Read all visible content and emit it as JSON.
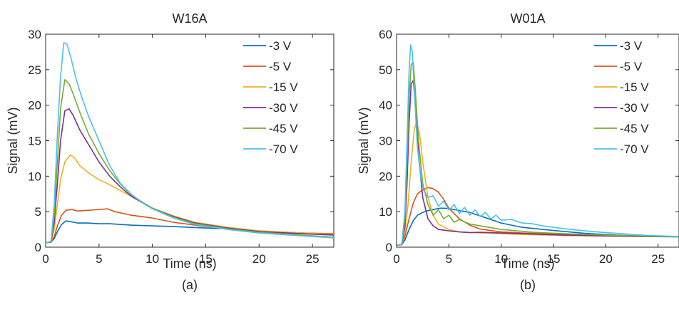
{
  "figure": {
    "caption_a": "(a)",
    "caption_b": "(b)"
  },
  "chart_data": [
    {
      "type": "line",
      "title": "W16A",
      "xlabel": "Time (ns)",
      "ylabel": "Signal (mV)",
      "xlim": [
        0,
        27
      ],
      "ylim": [
        0,
        30
      ],
      "xticks": [
        0,
        5,
        10,
        15,
        20,
        25
      ],
      "yticks": [
        0,
        5,
        10,
        15,
        20,
        25,
        30
      ],
      "legend_position": "top-right",
      "grid": false,
      "series": [
        {
          "name": "-3 V",
          "color": "#0072BD",
          "x": [
            0,
            0.5,
            0.8,
            1.1,
            1.5,
            1.9,
            2.3,
            3,
            4,
            5,
            6,
            8,
            10,
            12,
            15,
            18,
            21,
            24,
            27
          ],
          "y": [
            0.6,
            0.7,
            1.2,
            2.2,
            3.2,
            3.7,
            3.6,
            3.4,
            3.4,
            3.3,
            3.3,
            3.1,
            3.0,
            2.9,
            2.7,
            2.5,
            2.2,
            2.0,
            1.8
          ]
        },
        {
          "name": "-5 V",
          "color": "#D95319",
          "x": [
            0,
            0.5,
            0.8,
            1.1,
            1.5,
            1.9,
            2.5,
            3,
            4,
            5,
            5.8,
            6.5,
            8,
            10,
            12,
            15,
            18,
            21,
            24,
            27
          ],
          "y": [
            0.6,
            0.7,
            1.5,
            3.0,
            4.5,
            5.2,
            5.3,
            5.1,
            5.2,
            5.3,
            5.4,
            5.0,
            4.5,
            4.1,
            3.5,
            2.9,
            2.5,
            2.2,
            2.0,
            1.9
          ]
        },
        {
          "name": "-15 V",
          "color": "#EDB120",
          "x": [
            0,
            0.5,
            0.8,
            1.1,
            1.4,
            1.8,
            2.3,
            2.7,
            3.2,
            4,
            5,
            6,
            7,
            8,
            9,
            10,
            12,
            14,
            17,
            20,
            24,
            27
          ],
          "y": [
            0.6,
            0.8,
            2.5,
            6.0,
            9.5,
            12.0,
            13.0,
            12.6,
            11.5,
            10.5,
            9.5,
            8.8,
            8.0,
            7.2,
            6.3,
            5.5,
            4.4,
            3.5,
            2.8,
            2.3,
            2.0,
            1.8
          ]
        },
        {
          "name": "-30 V",
          "color": "#7E2F8E",
          "x": [
            0,
            0.5,
            0.8,
            1.1,
            1.4,
            1.8,
            2.2,
            2.6,
            3.2,
            4,
            5,
            6,
            7,
            8,
            9,
            10,
            12,
            14,
            17,
            20,
            24,
            27
          ],
          "y": [
            0.6,
            0.8,
            3.5,
            9.0,
            15.0,
            19.2,
            19.5,
            18.5,
            16.5,
            14.5,
            12.0,
            10.0,
            8.5,
            7.2,
            6.3,
            5.5,
            4.3,
            3.4,
            2.7,
            2.2,
            1.9,
            1.7
          ]
        },
        {
          "name": "-45 V",
          "color": "#77AC30",
          "x": [
            0,
            0.5,
            0.8,
            1.1,
            1.4,
            1.8,
            2.2,
            2.6,
            3.2,
            4,
            5,
            6,
            7,
            8,
            9,
            10,
            12,
            14,
            17,
            20,
            24,
            27
          ],
          "y": [
            0.6,
            0.8,
            4.5,
            12.0,
            19.5,
            23.6,
            23.0,
            21.5,
            19.0,
            16.0,
            13.2,
            10.8,
            8.9,
            7.4,
            6.4,
            5.5,
            4.2,
            3.3,
            2.6,
            2.1,
            1.7,
            1.4
          ]
        },
        {
          "name": "-70 V",
          "color": "#4DBEEE",
          "x": [
            0,
            0.5,
            0.8,
            1.1,
            1.4,
            1.7,
            2.0,
            2.4,
            2.8,
            3.3,
            4,
            5,
            6,
            7,
            8,
            9,
            10,
            12,
            14,
            17,
            20,
            24,
            27
          ],
          "y": [
            0.6,
            0.8,
            6.0,
            16.0,
            24.0,
            28.8,
            28.6,
            26.5,
            24.0,
            21.5,
            18.5,
            15.0,
            11.5,
            9.0,
            7.5,
            6.3,
            5.4,
            4.1,
            3.2,
            2.5,
            2.0,
            1.6,
            1.3
          ]
        }
      ]
    },
    {
      "type": "line",
      "title": "W01A",
      "xlabel": "Time (ns)",
      "ylabel": "Signal (mV)",
      "xlim": [
        0,
        27
      ],
      "ylim": [
        0,
        60
      ],
      "xticks": [
        0,
        5,
        10,
        15,
        20,
        25
      ],
      "yticks": [
        0,
        10,
        20,
        30,
        40,
        50,
        60
      ],
      "legend_position": "top-right",
      "grid": false,
      "series": [
        {
          "name": "-3 V",
          "color": "#0072BD",
          "x": [
            0,
            0.5,
            0.8,
            1.2,
            1.6,
            2.0,
            2.5,
            3,
            3.5,
            4.2,
            5,
            6,
            7,
            8,
            9,
            10,
            12,
            15,
            18,
            21,
            24,
            27
          ],
          "y": [
            0.5,
            0.7,
            2.0,
            5.0,
            7.5,
            9.0,
            9.8,
            10.3,
            10.6,
            11.0,
            10.9,
            10.3,
            9.8,
            8.8,
            7.8,
            6.8,
            5.6,
            4.7,
            3.9,
            3.4,
            3.1,
            3.0
          ]
        },
        {
          "name": "-5 V",
          "color": "#D95319",
          "x": [
            0,
            0.5,
            0.8,
            1.2,
            1.6,
            2.0,
            2.5,
            3,
            3.5,
            4,
            4.5,
            5,
            6,
            7,
            8,
            10,
            12,
            15,
            18,
            21,
            24,
            27
          ],
          "y": [
            0.5,
            0.7,
            3.0,
            8.0,
            12.5,
            15.0,
            16.2,
            16.8,
            16.5,
            15.5,
            13.5,
            11.0,
            8.0,
            6.2,
            5.1,
            4.3,
            4.0,
            3.7,
            3.4,
            3.2,
            3.1,
            3.0
          ]
        },
        {
          "name": "-15 V",
          "color": "#EDB120",
          "x": [
            0,
            0.5,
            0.8,
            1.1,
            1.4,
            1.7,
            1.9,
            2.2,
            2.5,
            3,
            3.5,
            4,
            5,
            6,
            8,
            10,
            13,
            16,
            20,
            24,
            27
          ],
          "y": [
            0.5,
            0.8,
            4.0,
            12.0,
            24.0,
            33.0,
            35.5,
            32.0,
            24.0,
            14.0,
            9.0,
            6.5,
            5.0,
            4.3,
            4.0,
            3.8,
            3.5,
            3.3,
            3.1,
            3.0,
            2.9
          ]
        },
        {
          "name": "-30 V",
          "color": "#7E2F8E",
          "x": [
            0,
            0.5,
            0.8,
            1.0,
            1.2,
            1.4,
            1.6,
            1.8,
            2.1,
            2.5,
            3,
            3.5,
            4,
            5,
            6,
            7,
            8,
            10,
            13,
            16,
            20,
            24,
            27
          ],
          "y": [
            0.5,
            0.8,
            6.0,
            18.0,
            35.0,
            46.0,
            47.0,
            40.0,
            26.0,
            14.0,
            8.0,
            6.0,
            5.0,
            4.6,
            4.3,
            4.1,
            4.2,
            4.0,
            3.7,
            3.4,
            3.2,
            3.0,
            2.9
          ]
        },
        {
          "name": "-45 V",
          "color": "#77AC30",
          "x": [
            0,
            0.5,
            0.8,
            1.0,
            1.2,
            1.4,
            1.6,
            1.8,
            2.1,
            2.5,
            3,
            3.5,
            4,
            4.5,
            5,
            5.5,
            6,
            7,
            8,
            10,
            13,
            16,
            20,
            24,
            27
          ],
          "y": [
            0.5,
            0.8,
            8.0,
            24.0,
            42.0,
            51.5,
            52.0,
            44.0,
            30.0,
            18.0,
            12.0,
            9.0,
            10.5,
            8.0,
            9.0,
            7.0,
            7.8,
            6.5,
            6.0,
            5.0,
            4.2,
            3.8,
            3.4,
            3.1,
            2.9
          ]
        },
        {
          "name": "-70 V",
          "color": "#4DBEEE",
          "x": [
            0,
            0.5,
            0.8,
            1.0,
            1.2,
            1.35,
            1.5,
            1.7,
            2.0,
            2.3,
            2.6,
            3,
            3.5,
            4,
            4.5,
            5,
            5.5,
            6,
            6.5,
            7,
            7.5,
            8,
            8.5,
            9,
            9.5,
            10,
            11,
            12,
            13,
            14,
            16,
            18,
            20,
            22,
            24,
            27
          ],
          "y": [
            0.5,
            0.8,
            10.0,
            30.0,
            50.0,
            57.0,
            55.0,
            44.0,
            28.0,
            20.0,
            16.0,
            14.0,
            14.5,
            11.5,
            13.0,
            10.5,
            12.0,
            9.5,
            11.2,
            9.0,
            10.5,
            8.6,
            9.8,
            8.0,
            9.0,
            7.6,
            7.8,
            6.8,
            6.6,
            6.0,
            5.2,
            4.6,
            4.1,
            3.7,
            3.3,
            3.0
          ]
        }
      ]
    }
  ]
}
